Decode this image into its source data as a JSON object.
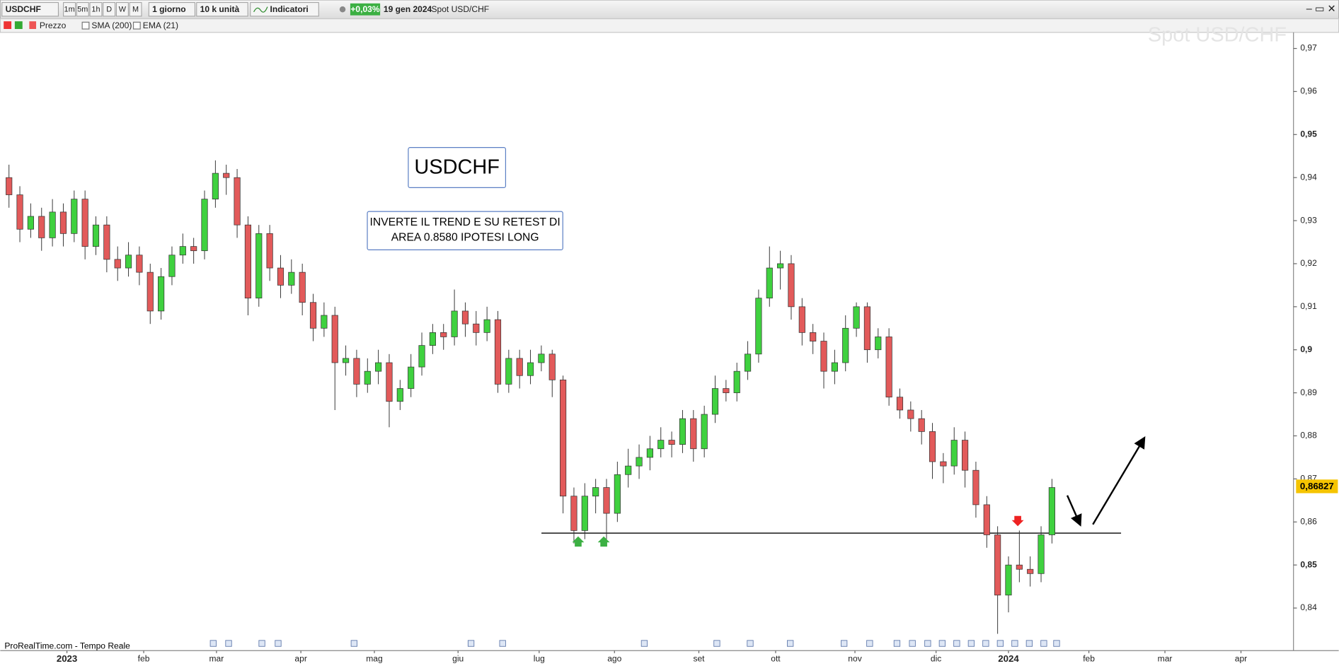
{
  "toolbar": {
    "symbol": "USDCHF",
    "timeframes": [
      "1m",
      "5m",
      "1h",
      "D",
      "W",
      "M"
    ],
    "period": "1 giorno",
    "units": "10 k unità",
    "indicators": "Indicatori",
    "change": "+0,03%",
    "date": "19 gen 2024",
    "instrument": "Spot USD/CHF"
  },
  "legend_bar": {
    "items": [
      "Prezzo",
      "SMA (200)",
      "EMA (21)"
    ]
  },
  "footer": "ProRealTime.com - Tempo Reale",
  "chart_data": {
    "type": "candlestick",
    "watermark": "Spot USD/CHF",
    "annotations": [
      "USDCHF",
      "INVERTE IL TREND E SU RETEST DI",
      "AREA 0.8580 IPOTESI LONG"
    ],
    "last_price": {
      "value": 0.86827,
      "label": "0,86827"
    },
    "support_level": 0.8574,
    "up_color": "#3fd13f",
    "down_color": "#e25a5a",
    "x": [
      -16,
      -13,
      -10,
      -7,
      -4,
      -1,
      2,
      5,
      8,
      11,
      14,
      17,
      20,
      23,
      26,
      29,
      32,
      35,
      38,
      41,
      44,
      47,
      50,
      53,
      56,
      59,
      62,
      65,
      68,
      71,
      74,
      77,
      80,
      83,
      86,
      89,
      92,
      95,
      98,
      101,
      104,
      107,
      110,
      113,
      116,
      119,
      122,
      125,
      128,
      131,
      134,
      137,
      140,
      143,
      146,
      149,
      152,
      155,
      158,
      161,
      164,
      167,
      170,
      173,
      176,
      179,
      182,
      185,
      188,
      191,
      194,
      197,
      200,
      203,
      206,
      209,
      212,
      215,
      218,
      221,
      224,
      227,
      230,
      233,
      236,
      239,
      242,
      245,
      248,
      251,
      254,
      257,
      260,
      263,
      266,
      269,
      272
    ],
    "open": [
      0.94,
      0.936,
      0.928,
      0.931,
      0.926,
      0.932,
      0.927,
      0.935,
      0.924,
      0.929,
      0.921,
      0.919,
      0.922,
      0.918,
      0.909,
      0.917,
      0.922,
      0.924,
      0.923,
      0.935,
      0.941,
      0.94,
      0.929,
      0.912,
      0.927,
      0.919,
      0.915,
      0.918,
      0.911,
      0.905,
      0.908,
      0.897,
      0.898,
      0.892,
      0.895,
      0.897,
      0.888,
      0.891,
      0.896,
      0.901,
      0.904,
      0.903,
      0.909,
      0.906,
      0.904,
      0.907,
      0.892,
      0.898,
      0.894,
      0.897,
      0.899,
      0.893,
      0.866,
      0.858,
      0.866,
      0.868,
      0.862,
      0.871,
      0.873,
      0.875,
      0.877,
      0.879,
      0.878,
      0.884,
      0.877,
      0.885,
      0.891,
      0.89,
      0.895,
      0.899,
      0.912,
      0.919,
      0.92,
      0.91,
      0.904,
      0.902,
      0.895,
      0.897,
      0.905,
      0.91,
      0.9,
      0.903,
      0.889,
      0.886,
      0.884,
      0.881,
      0.874,
      0.873,
      0.879,
      0.872,
      0.864,
      0.857,
      0.843,
      0.85,
      0.849,
      0.848,
      0.857
    ],
    "high": [
      0.943,
      0.938,
      0.934,
      0.933,
      0.935,
      0.934,
      0.937,
      0.937,
      0.931,
      0.931,
      0.924,
      0.925,
      0.924,
      0.92,
      0.919,
      0.924,
      0.927,
      0.926,
      0.937,
      0.944,
      0.943,
      0.942,
      0.931,
      0.929,
      0.929,
      0.922,
      0.921,
      0.92,
      0.913,
      0.911,
      0.91,
      0.901,
      0.9,
      0.898,
      0.9,
      0.899,
      0.893,
      0.899,
      0.904,
      0.906,
      0.906,
      0.914,
      0.911,
      0.909,
      0.91,
      0.909,
      0.9,
      0.9,
      0.9,
      0.901,
      0.9,
      0.894,
      0.868,
      0.869,
      0.87,
      0.87,
      0.874,
      0.877,
      0.878,
      0.88,
      0.882,
      0.881,
      0.886,
      0.886,
      0.887,
      0.894,
      0.893,
      0.897,
      0.902,
      0.914,
      0.924,
      0.923,
      0.922,
      0.912,
      0.906,
      0.904,
      0.9,
      0.908,
      0.911,
      0.911,
      0.905,
      0.905,
      0.891,
      0.888,
      0.886,
      0.883,
      0.876,
      0.882,
      0.881,
      0.874,
      0.866,
      0.859,
      0.852,
      0.858,
      0.852,
      0.859,
      0.87
    ],
    "low": [
      0.933,
      0.925,
      0.926,
      0.923,
      0.924,
      0.924,
      0.925,
      0.921,
      0.922,
      0.918,
      0.916,
      0.917,
      0.915,
      0.906,
      0.907,
      0.915,
      0.92,
      0.92,
      0.921,
      0.933,
      0.936,
      0.926,
      0.908,
      0.91,
      0.916,
      0.912,
      0.913,
      0.908,
      0.902,
      0.903,
      0.886,
      0.894,
      0.889,
      0.89,
      0.892,
      0.882,
      0.886,
      0.889,
      0.894,
      0.899,
      0.9,
      0.901,
      0.903,
      0.901,
      0.902,
      0.89,
      0.89,
      0.891,
      0.892,
      0.895,
      0.889,
      0.862,
      0.855,
      0.856,
      0.862,
      0.856,
      0.86,
      0.868,
      0.87,
      0.872,
      0.875,
      0.875,
      0.876,
      0.874,
      0.875,
      0.883,
      0.888,
      0.888,
      0.893,
      0.897,
      0.91,
      0.914,
      0.907,
      0.901,
      0.899,
      0.891,
      0.892,
      0.895,
      0.903,
      0.897,
      0.898,
      0.887,
      0.884,
      0.881,
      0.878,
      0.87,
      0.869,
      0.871,
      0.868,
      0.861,
      0.854,
      0.834,
      0.839,
      0.846,
      0.845,
      0.846,
      0.855
    ],
    "close": [
      0.936,
      0.928,
      0.931,
      0.926,
      0.932,
      0.927,
      0.935,
      0.924,
      0.929,
      0.921,
      0.919,
      0.922,
      0.918,
      0.909,
      0.917,
      0.922,
      0.924,
      0.923,
      0.935,
      0.941,
      0.94,
      0.929,
      0.912,
      0.927,
      0.919,
      0.915,
      0.918,
      0.911,
      0.905,
      0.908,
      0.897,
      0.898,
      0.892,
      0.895,
      0.897,
      0.888,
      0.891,
      0.896,
      0.901,
      0.904,
      0.903,
      0.909,
      0.906,
      0.904,
      0.907,
      0.892,
      0.898,
      0.894,
      0.897,
      0.899,
      0.893,
      0.866,
      0.858,
      0.866,
      0.868,
      0.862,
      0.871,
      0.873,
      0.875,
      0.877,
      0.879,
      0.878,
      0.884,
      0.877,
      0.885,
      0.891,
      0.89,
      0.895,
      0.899,
      0.912,
      0.919,
      0.92,
      0.91,
      0.904,
      0.902,
      0.895,
      0.897,
      0.905,
      0.91,
      0.9,
      0.903,
      0.889,
      0.886,
      0.884,
      0.881,
      0.874,
      0.873,
      0.879,
      0.872,
      0.864,
      0.857,
      0.843,
      0.85,
      0.849,
      0.848,
      0.857,
      0.868
    ],
    "xlim": [
      -17.7,
      338.7
    ],
    "ylim": [
      0.8301,
      0.9769
    ],
    "xticks": [
      {
        "value": 0,
        "label": "2023"
      },
      {
        "value": 21.2,
        "label": "feb"
      },
      {
        "value": 41.3,
        "label": "mar"
      },
      {
        "value": 64.6,
        "label": "apr"
      },
      {
        "value": 84.9,
        "label": "mag"
      },
      {
        "value": 108,
        "label": "giu"
      },
      {
        "value": 130.4,
        "label": "lug"
      },
      {
        "value": 151.2,
        "label": "ago"
      },
      {
        "value": 174.5,
        "label": "set"
      },
      {
        "value": 195.7,
        "label": "ott"
      },
      {
        "value": 217.6,
        "label": "nov"
      },
      {
        "value": 240,
        "label": "dic"
      },
      {
        "value": 260,
        "label": "2024"
      },
      {
        "value": 282.2,
        "label": "feb"
      },
      {
        "value": 303.2,
        "label": "mar"
      },
      {
        "value": 324.2,
        "label": "apr"
      }
    ],
    "yticks": [
      {
        "value": 0.84,
        "label": "0,84"
      },
      {
        "value": 0.85,
        "label": "0,85"
      },
      {
        "value": 0.86,
        "label": "0,86"
      },
      {
        "value": 0.87,
        "label": "0,87"
      },
      {
        "value": 0.88,
        "label": "0,88"
      },
      {
        "value": 0.89,
        "label": "0,89"
      },
      {
        "value": 0.9,
        "label": "0,9"
      },
      {
        "value": 0.91,
        "label": "0,91"
      },
      {
        "value": 0.92,
        "label": "0,92"
      },
      {
        "value": 0.93,
        "label": "0,93"
      },
      {
        "value": 0.94,
        "label": "0,94"
      },
      {
        "value": 0.95,
        "label": "0,95"
      },
      {
        "value": 0.96,
        "label": "0,96"
      },
      {
        "value": 0.97,
        "label": "0,97"
      }
    ]
  }
}
